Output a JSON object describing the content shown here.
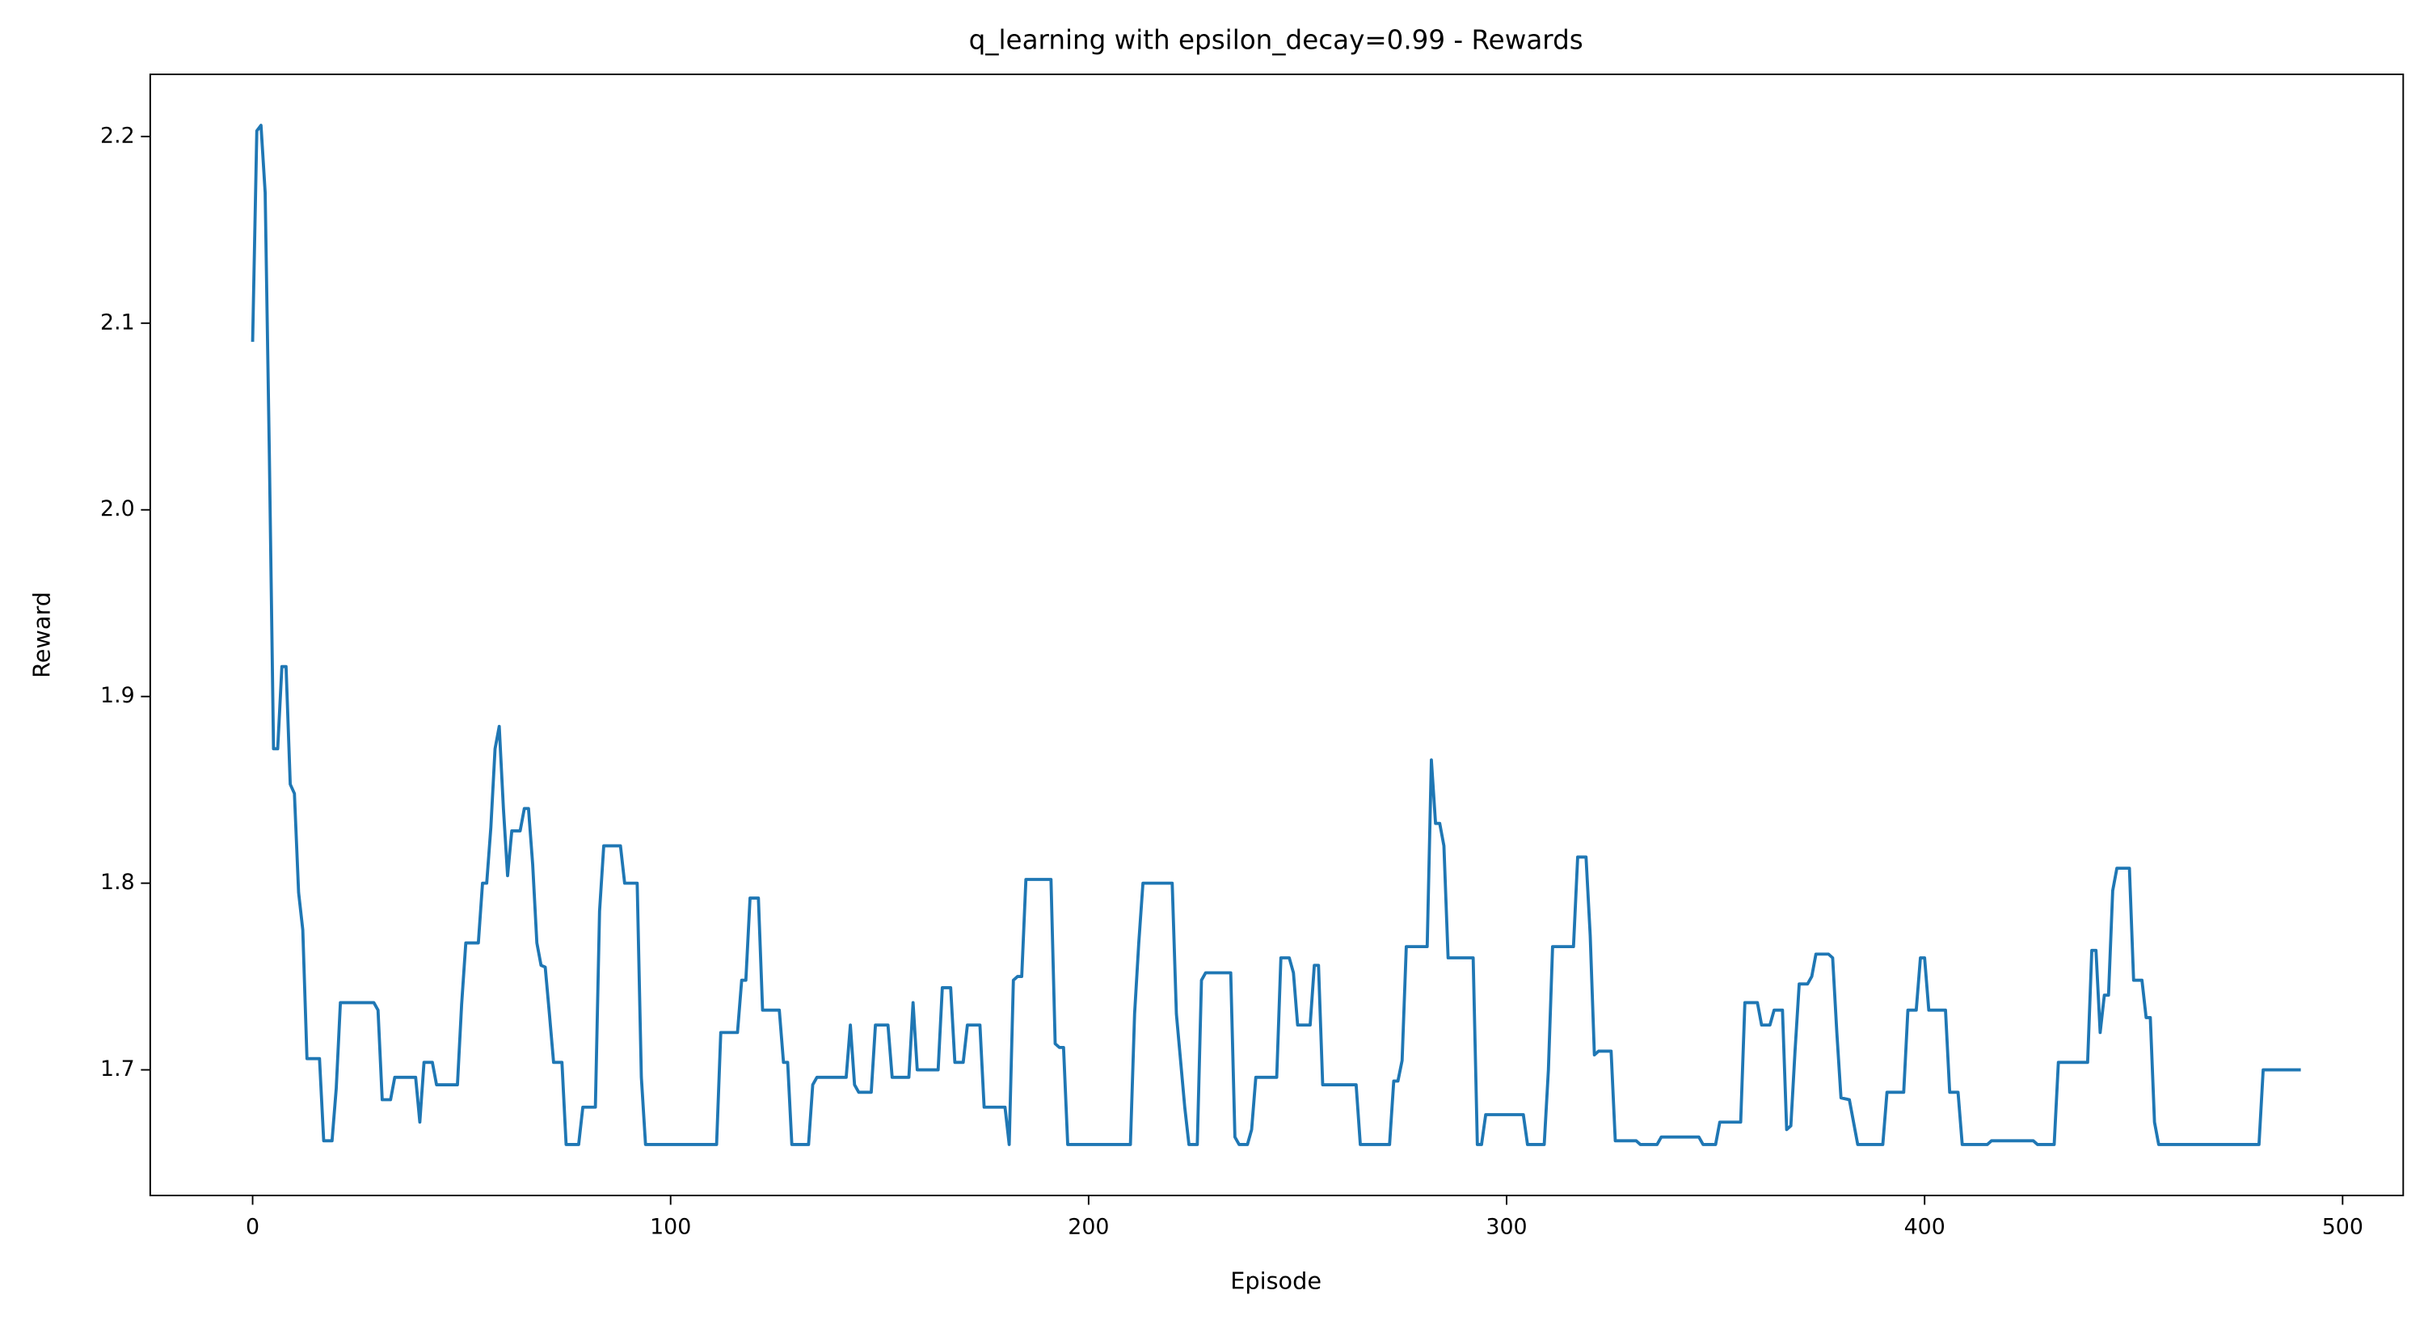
{
  "chart_data": {
    "type": "line",
    "title": "q_learning with epsilon_decay=0.99 - Rewards",
    "x_label": "Episode",
    "y_label": "Reward",
    "x": [
      0,
      1,
      2,
      3,
      4,
      5,
      6,
      7,
      8,
      9,
      10,
      11,
      12,
      13,
      16,
      17,
      19,
      20,
      21,
      29,
      30,
      31,
      33,
      34,
      39,
      40,
      41,
      43,
      44,
      49,
      50,
      51,
      54,
      55,
      56,
      57,
      58,
      59,
      60,
      61,
      62,
      64,
      65,
      66,
      67,
      68,
      69,
      70,
      71,
      72,
      74,
      75,
      78,
      79,
      82,
      83,
      84,
      88,
      89,
      92,
      93,
      94,
      111,
      112,
      116,
      117,
      118,
      119,
      121,
      122,
      126,
      127,
      128,
      129,
      133,
      134,
      135,
      142,
      143,
      144,
      145,
      148,
      149,
      152,
      153,
      157,
      158,
      159,
      164,
      165,
      167,
      168,
      170,
      171,
      174,
      175,
      180,
      181,
      182,
      183,
      184,
      185,
      191,
      192,
      193,
      194,
      195,
      210,
      211,
      212,
      213,
      220,
      221,
      223,
      224,
      226,
      227,
      228,
      234,
      235,
      236,
      238,
      239,
      240,
      245,
      246,
      248,
      249,
      250,
      253,
      254,
      255,
      256,
      264,
      265,
      272,
      273,
      274,
      275,
      276,
      281,
      282,
      283,
      284,
      285,
      286,
      292,
      293,
      294,
      295,
      304,
      305,
      309,
      310,
      311,
      316,
      317,
      319,
      320,
      321,
      322,
      325,
      326,
      331,
      332,
      336,
      337,
      346,
      347,
      350,
      351,
      356,
      357,
      360,
      361,
      363,
      364,
      366,
      367,
      368,
      369,
      370,
      372,
      373,
      374,
      377,
      378,
      379,
      380,
      382,
      383,
      384,
      390,
      391,
      395,
      396,
      398,
      399,
      400,
      401,
      405,
      406,
      408,
      409,
      415,
      416,
      426,
      427,
      431,
      432,
      439,
      440,
      441,
      442,
      443,
      444,
      445,
      446,
      449,
      450,
      452,
      453,
      454,
      455,
      456,
      480,
      481,
      490
    ],
    "series": [
      {
        "name": "Reward",
        "color": "#1f77b4",
        "values": [
          2.09,
          2.203,
          2.206,
          2.17,
          2.03,
          1.872,
          1.872,
          1.916,
          1.916,
          1.853,
          1.848,
          1.795,
          1.775,
          1.706,
          1.706,
          1.662,
          1.662,
          1.69,
          1.736,
          1.736,
          1.732,
          1.684,
          1.684,
          1.696,
          1.696,
          1.672,
          1.704,
          1.704,
          1.692,
          1.692,
          1.735,
          1.768,
          1.768,
          1.8,
          1.8,
          1.83,
          1.872,
          1.884,
          1.84,
          1.804,
          1.828,
          1.828,
          1.84,
          1.84,
          1.81,
          1.768,
          1.756,
          1.755,
          1.73,
          1.704,
          1.704,
          1.66,
          1.66,
          1.68,
          1.68,
          1.785,
          1.82,
          1.82,
          1.8,
          1.8,
          1.696,
          1.66,
          1.66,
          1.72,
          1.72,
          1.748,
          1.748,
          1.792,
          1.792,
          1.732,
          1.732,
          1.704,
          1.704,
          1.66,
          1.66,
          1.692,
          1.696,
          1.696,
          1.724,
          1.692,
          1.688,
          1.688,
          1.724,
          1.724,
          1.696,
          1.696,
          1.736,
          1.7,
          1.7,
          1.744,
          1.744,
          1.704,
          1.704,
          1.724,
          1.724,
          1.68,
          1.68,
          1.66,
          1.748,
          1.75,
          1.75,
          1.802,
          1.802,
          1.714,
          1.712,
          1.712,
          1.66,
          1.66,
          1.73,
          1.768,
          1.8,
          1.8,
          1.73,
          1.68,
          1.66,
          1.66,
          1.748,
          1.752,
          1.752,
          1.664,
          1.66,
          1.66,
          1.668,
          1.696,
          1.696,
          1.76,
          1.76,
          1.752,
          1.724,
          1.724,
          1.756,
          1.756,
          1.692,
          1.692,
          1.66,
          1.66,
          1.694,
          1.694,
          1.705,
          1.766,
          1.766,
          1.866,
          1.832,
          1.832,
          1.82,
          1.76,
          1.76,
          1.66,
          1.66,
          1.676,
          1.676,
          1.66,
          1.66,
          1.7,
          1.766,
          1.766,
          1.814,
          1.814,
          1.772,
          1.708,
          1.71,
          1.71,
          1.662,
          1.662,
          1.66,
          1.66,
          1.664,
          1.664,
          1.66,
          1.66,
          1.672,
          1.672,
          1.736,
          1.736,
          1.724,
          1.724,
          1.732,
          1.732,
          1.668,
          1.67,
          1.71,
          1.746,
          1.746,
          1.75,
          1.762,
          1.762,
          1.76,
          1.72,
          1.685,
          1.684,
          1.672,
          1.66,
          1.66,
          1.688,
          1.688,
          1.732,
          1.732,
          1.76,
          1.76,
          1.732,
          1.732,
          1.688,
          1.688,
          1.66,
          1.66,
          1.662,
          1.662,
          1.66,
          1.66,
          1.704,
          1.704,
          1.764,
          1.764,
          1.72,
          1.74,
          1.74,
          1.796,
          1.808,
          1.808,
          1.748,
          1.748,
          1.728,
          1.728,
          1.672,
          1.66,
          1.66,
          1.7,
          1.7
        ]
      }
    ],
    "xlim": [
      -24.5,
      514.5
    ],
    "ylim": [
      1.6327,
      2.2333
    ],
    "xticks": [
      0,
      100,
      200,
      300,
      400,
      500
    ],
    "yticks": [
      1.7,
      1.8,
      1.9,
      {
        "value": 2,
        "label": "2.0"
      },
      2.1,
      2.2
    ]
  }
}
